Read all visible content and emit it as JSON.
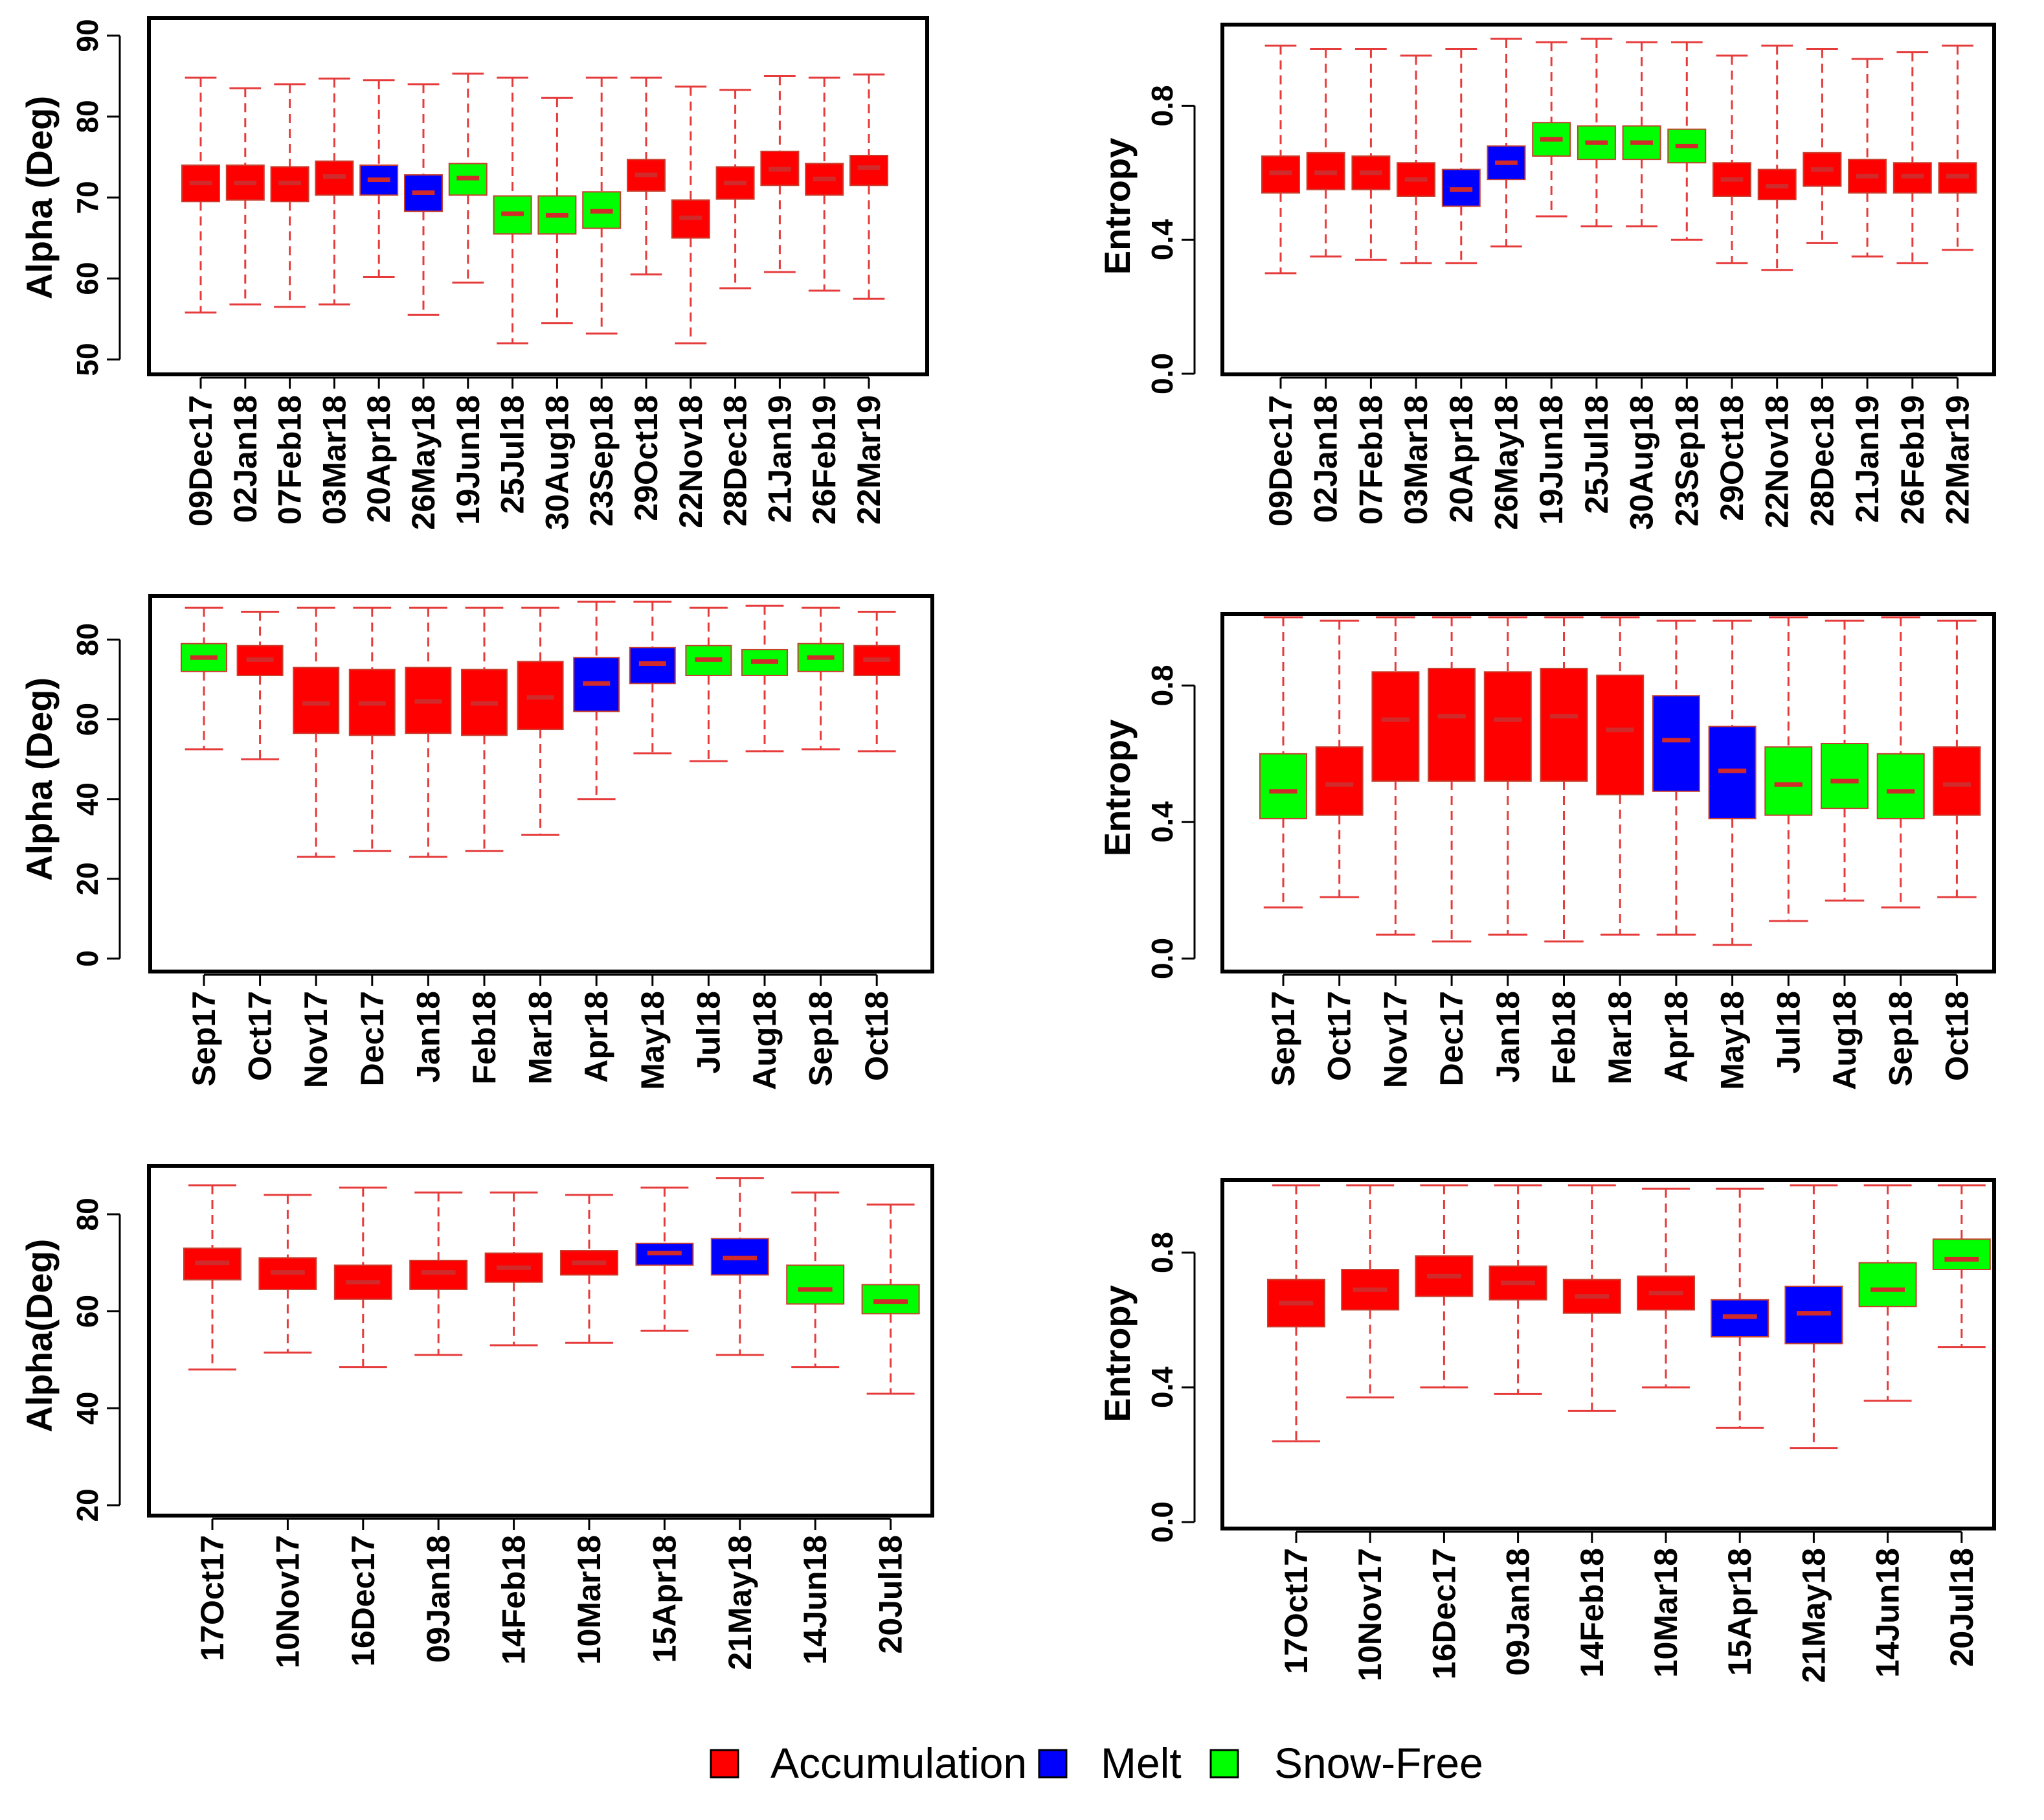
{
  "colors": {
    "Accumulation": "#ff0000",
    "Melt": "#0000ff",
    "Snow-Free": "#00ff00"
  },
  "legend": {
    "items": [
      {
        "label": "Accumulation",
        "color": "#ff0000"
      },
      {
        "label": "Melt",
        "color": "#0000ff"
      },
      {
        "label": "Snow-Free",
        "color": "#00ff00"
      }
    ]
  },
  "chart_data": [
    {
      "type": "boxplot",
      "ylabel": "Alpha (Deg)",
      "ylim": [
        50,
        90
      ],
      "yticks": [
        50,
        60,
        70,
        80,
        90
      ],
      "categories": [
        "09Dec17",
        "02Jan18",
        "07Feb18",
        "03Mar18",
        "20Apr18",
        "26May18",
        "19Jun18",
        "25Jul18",
        "30Aug18",
        "23Sep18",
        "29Oct18",
        "22Nov18",
        "28Dec18",
        "21Jan19",
        "26Feb19",
        "22Mar19"
      ],
      "boxes": [
        {
          "min": 55.8,
          "q1": 69.5,
          "median": 71.8,
          "q3": 74.0,
          "max": 84.8,
          "class": "Accumulation"
        },
        {
          "min": 56.8,
          "q1": 69.7,
          "median": 71.8,
          "q3": 74.0,
          "max": 83.5,
          "class": "Accumulation"
        },
        {
          "min": 56.5,
          "q1": 69.5,
          "median": 71.8,
          "q3": 73.8,
          "max": 84.0,
          "class": "Accumulation"
        },
        {
          "min": 56.8,
          "q1": 70.3,
          "median": 72.6,
          "q3": 74.5,
          "max": 84.7,
          "class": "Accumulation"
        },
        {
          "min": 60.2,
          "q1": 70.3,
          "median": 72.2,
          "q3": 74.0,
          "max": 84.5,
          "class": "Melt"
        },
        {
          "min": 55.5,
          "q1": 68.3,
          "median": 70.6,
          "q3": 72.8,
          "max": 84.0,
          "class": "Melt"
        },
        {
          "min": 59.5,
          "q1": 70.3,
          "median": 72.4,
          "q3": 74.2,
          "max": 85.3,
          "class": "Snow-Free"
        },
        {
          "min": 52.0,
          "q1": 65.5,
          "median": 68.0,
          "q3": 70.2,
          "max": 84.8,
          "class": "Snow-Free"
        },
        {
          "min": 54.5,
          "q1": 65.5,
          "median": 67.8,
          "q3": 70.2,
          "max": 82.3,
          "class": "Snow-Free"
        },
        {
          "min": 53.2,
          "q1": 66.2,
          "median": 68.3,
          "q3": 70.7,
          "max": 84.8,
          "class": "Snow-Free"
        },
        {
          "min": 60.5,
          "q1": 70.8,
          "median": 72.8,
          "q3": 74.7,
          "max": 84.8,
          "class": "Accumulation"
        },
        {
          "min": 52.0,
          "q1": 65.0,
          "median": 67.5,
          "q3": 69.7,
          "max": 83.7,
          "class": "Accumulation"
        },
        {
          "min": 58.8,
          "q1": 69.8,
          "median": 71.8,
          "q3": 73.8,
          "max": 83.3,
          "class": "Accumulation"
        },
        {
          "min": 60.8,
          "q1": 71.5,
          "median": 73.5,
          "q3": 75.7,
          "max": 85.0,
          "class": "Accumulation"
        },
        {
          "min": 58.5,
          "q1": 70.3,
          "median": 72.3,
          "q3": 74.2,
          "max": 84.8,
          "class": "Accumulation"
        },
        {
          "min": 57.5,
          "q1": 71.5,
          "median": 73.7,
          "q3": 75.2,
          "max": 85.2,
          "class": "Accumulation"
        }
      ]
    },
    {
      "type": "boxplot",
      "ylabel": "Entropy",
      "ylim": [
        0.0,
        1.0
      ],
      "yticks": [
        0.0,
        0.4,
        0.8
      ],
      "ytick_labels": [
        "0.0",
        "0.4",
        "0.8"
      ],
      "categories": [
        "09Dec17",
        "02Jan18",
        "07Feb18",
        "03Mar18",
        "20Apr18",
        "26May18",
        "19Jun18",
        "25Jul18",
        "30Aug18",
        "23Sep18",
        "29Oct18",
        "22Nov18",
        "28Dec18",
        "21Jan19",
        "26Feb19",
        "22Mar19"
      ],
      "boxes": [
        {
          "min": 0.3,
          "q1": 0.54,
          "median": 0.6,
          "q3": 0.65,
          "max": 0.98,
          "class": "Accumulation"
        },
        {
          "min": 0.35,
          "q1": 0.55,
          "median": 0.6,
          "q3": 0.66,
          "max": 0.97,
          "class": "Accumulation"
        },
        {
          "min": 0.34,
          "q1": 0.55,
          "median": 0.6,
          "q3": 0.65,
          "max": 0.97,
          "class": "Accumulation"
        },
        {
          "min": 0.33,
          "q1": 0.53,
          "median": 0.58,
          "q3": 0.63,
          "max": 0.95,
          "class": "Accumulation"
        },
        {
          "min": 0.33,
          "q1": 0.5,
          "median": 0.55,
          "q3": 0.61,
          "max": 0.97,
          "class": "Melt"
        },
        {
          "min": 0.38,
          "q1": 0.58,
          "median": 0.63,
          "q3": 0.68,
          "max": 1.0,
          "class": "Melt"
        },
        {
          "min": 0.47,
          "q1": 0.65,
          "median": 0.7,
          "q3": 0.75,
          "max": 0.99,
          "class": "Snow-Free"
        },
        {
          "min": 0.44,
          "q1": 0.64,
          "median": 0.69,
          "q3": 0.74,
          "max": 1.0,
          "class": "Snow-Free"
        },
        {
          "min": 0.44,
          "q1": 0.64,
          "median": 0.69,
          "q3": 0.74,
          "max": 0.99,
          "class": "Snow-Free"
        },
        {
          "min": 0.4,
          "q1": 0.63,
          "median": 0.68,
          "q3": 0.73,
          "max": 0.99,
          "class": "Snow-Free"
        },
        {
          "min": 0.33,
          "q1": 0.53,
          "median": 0.58,
          "q3": 0.63,
          "max": 0.95,
          "class": "Accumulation"
        },
        {
          "min": 0.31,
          "q1": 0.52,
          "median": 0.56,
          "q3": 0.61,
          "max": 0.98,
          "class": "Accumulation"
        },
        {
          "min": 0.39,
          "q1": 0.56,
          "median": 0.61,
          "q3": 0.66,
          "max": 0.97,
          "class": "Accumulation"
        },
        {
          "min": 0.35,
          "q1": 0.54,
          "median": 0.59,
          "q3": 0.64,
          "max": 0.94,
          "class": "Accumulation"
        },
        {
          "min": 0.33,
          "q1": 0.54,
          "median": 0.59,
          "q3": 0.63,
          "max": 0.96,
          "class": "Accumulation"
        },
        {
          "min": 0.37,
          "q1": 0.54,
          "median": 0.59,
          "q3": 0.63,
          "max": 0.98,
          "class": "Accumulation"
        }
      ]
    },
    {
      "type": "boxplot",
      "ylabel": "Alpha (Deg)",
      "ylim": [
        0,
        90
      ],
      "yticks": [
        0,
        20,
        40,
        60,
        80
      ],
      "categories": [
        "Sep17",
        "Oct17",
        "Nov17",
        "Dec17",
        "Jan18",
        "Feb18",
        "Mar18",
        "Apr18",
        "May18",
        "Jul18",
        "Aug18",
        "Sep18",
        "Oct18"
      ],
      "boxes": [
        {
          "min": 52.5,
          "q1": 72.0,
          "median": 75.5,
          "q3": 79.0,
          "max": 88.0,
          "class": "Snow-Free"
        },
        {
          "min": 50.0,
          "q1": 71.0,
          "median": 75.0,
          "q3": 78.5,
          "max": 87.0,
          "class": "Accumulation"
        },
        {
          "min": 25.5,
          "q1": 56.5,
          "median": 64.0,
          "q3": 73.0,
          "max": 88.0,
          "class": "Accumulation"
        },
        {
          "min": 27.0,
          "q1": 56.0,
          "median": 64.0,
          "q3": 72.5,
          "max": 88.0,
          "class": "Accumulation"
        },
        {
          "min": 25.5,
          "q1": 56.5,
          "median": 64.5,
          "q3": 73.0,
          "max": 88.0,
          "class": "Accumulation"
        },
        {
          "min": 27.0,
          "q1": 56.0,
          "median": 64.0,
          "q3": 72.5,
          "max": 88.0,
          "class": "Accumulation"
        },
        {
          "min": 31.0,
          "q1": 57.5,
          "median": 65.5,
          "q3": 74.5,
          "max": 88.0,
          "class": "Accumulation"
        },
        {
          "min": 40.0,
          "q1": 62.0,
          "median": 69.0,
          "q3": 75.5,
          "max": 89.5,
          "class": "Melt"
        },
        {
          "min": 51.5,
          "q1": 69.0,
          "median": 74.0,
          "q3": 78.0,
          "max": 89.5,
          "class": "Melt"
        },
        {
          "min": 49.5,
          "q1": 71.0,
          "median": 75.0,
          "q3": 78.5,
          "max": 88.0,
          "class": "Snow-Free"
        },
        {
          "min": 52.0,
          "q1": 71.0,
          "median": 74.5,
          "q3": 77.5,
          "max": 88.5,
          "class": "Snow-Free"
        },
        {
          "min": 52.5,
          "q1": 72.0,
          "median": 75.5,
          "q3": 79.0,
          "max": 88.0,
          "class": "Snow-Free"
        },
        {
          "min": 52.0,
          "q1": 71.0,
          "median": 75.0,
          "q3": 78.5,
          "max": 87.0,
          "class": "Accumulation"
        }
      ]
    },
    {
      "type": "boxplot",
      "ylabel": "Entropy",
      "ylim": [
        0.0,
        1.0
      ],
      "yticks": [
        0.0,
        0.4,
        0.8
      ],
      "ytick_labels": [
        "0.0",
        "0.4",
        "0.8"
      ],
      "categories": [
        "Sep17",
        "Oct17",
        "Nov17",
        "Dec17",
        "Jan18",
        "Feb18",
        "Mar18",
        "Apr18",
        "May18",
        "Jul18",
        "Aug18",
        "Sep18",
        "Oct18"
      ],
      "boxes": [
        {
          "min": 0.15,
          "q1": 0.41,
          "median": 0.49,
          "q3": 0.6,
          "max": 1.0,
          "class": "Snow-Free"
        },
        {
          "min": 0.18,
          "q1": 0.42,
          "median": 0.51,
          "q3": 0.62,
          "max": 0.99,
          "class": "Accumulation"
        },
        {
          "min": 0.07,
          "q1": 0.52,
          "median": 0.7,
          "q3": 0.84,
          "max": 1.0,
          "class": "Accumulation"
        },
        {
          "min": 0.05,
          "q1": 0.52,
          "median": 0.71,
          "q3": 0.85,
          "max": 1.0,
          "class": "Accumulation"
        },
        {
          "min": 0.07,
          "q1": 0.52,
          "median": 0.7,
          "q3": 0.84,
          "max": 1.0,
          "class": "Accumulation"
        },
        {
          "min": 0.05,
          "q1": 0.52,
          "median": 0.71,
          "q3": 0.85,
          "max": 1.0,
          "class": "Accumulation"
        },
        {
          "min": 0.07,
          "q1": 0.48,
          "median": 0.67,
          "q3": 0.83,
          "max": 1.0,
          "class": "Accumulation"
        },
        {
          "min": 0.07,
          "q1": 0.49,
          "median": 0.64,
          "q3": 0.77,
          "max": 0.99,
          "class": "Melt"
        },
        {
          "min": 0.04,
          "q1": 0.41,
          "median": 0.55,
          "q3": 0.68,
          "max": 0.99,
          "class": "Melt"
        },
        {
          "min": 0.11,
          "q1": 0.42,
          "median": 0.51,
          "q3": 0.62,
          "max": 1.0,
          "class": "Snow-Free"
        },
        {
          "min": 0.17,
          "q1": 0.44,
          "median": 0.52,
          "q3": 0.63,
          "max": 0.99,
          "class": "Snow-Free"
        },
        {
          "min": 0.15,
          "q1": 0.41,
          "median": 0.49,
          "q3": 0.6,
          "max": 1.0,
          "class": "Snow-Free"
        },
        {
          "min": 0.18,
          "q1": 0.42,
          "median": 0.51,
          "q3": 0.62,
          "max": 0.99,
          "class": "Accumulation"
        }
      ]
    },
    {
      "type": "boxplot",
      "ylabel": "Alpha(Deg)",
      "ylim": [
        20,
        90
      ],
      "yticks": [
        20,
        40,
        60,
        80
      ],
      "categories": [
        "17Oct17",
        "10Nov17",
        "16Dec17",
        "09Jan18",
        "14Feb18",
        "10Mar18",
        "15Apr18",
        "21May18",
        "14Jun18",
        "20Jul18"
      ],
      "boxes": [
        {
          "min": 48.0,
          "q1": 66.5,
          "median": 70.0,
          "q3": 73.0,
          "max": 86.0,
          "class": "Accumulation"
        },
        {
          "min": 51.5,
          "q1": 64.5,
          "median": 68.0,
          "q3": 71.0,
          "max": 84.0,
          "class": "Accumulation"
        },
        {
          "min": 48.5,
          "q1": 62.5,
          "median": 66.0,
          "q3": 69.5,
          "max": 85.5,
          "class": "Accumulation"
        },
        {
          "min": 51.0,
          "q1": 64.5,
          "median": 68.0,
          "q3": 70.5,
          "max": 84.5,
          "class": "Accumulation"
        },
        {
          "min": 53.0,
          "q1": 66.0,
          "median": 69.0,
          "q3": 72.0,
          "max": 84.5,
          "class": "Accumulation"
        },
        {
          "min": 53.5,
          "q1": 67.5,
          "median": 70.0,
          "q3": 72.5,
          "max": 84.0,
          "class": "Accumulation"
        },
        {
          "min": 56.0,
          "q1": 69.5,
          "median": 72.0,
          "q3": 74.0,
          "max": 85.5,
          "class": "Melt"
        },
        {
          "min": 51.0,
          "q1": 67.5,
          "median": 71.0,
          "q3": 75.0,
          "max": 87.5,
          "class": "Melt"
        },
        {
          "min": 48.5,
          "q1": 61.5,
          "median": 64.5,
          "q3": 69.5,
          "max": 84.5,
          "class": "Snow-Free"
        },
        {
          "min": 43.0,
          "q1": 59.5,
          "median": 62.0,
          "q3": 65.5,
          "max": 82.0,
          "class": "Snow-Free"
        }
      ]
    },
    {
      "type": "boxplot",
      "ylabel": "Entropy",
      "ylim": [
        0.0,
        1.0
      ],
      "yticks": [
        0.0,
        0.4,
        0.8
      ],
      "ytick_labels": [
        "0.0",
        "0.4",
        "0.8"
      ],
      "categories": [
        "17Oct17",
        "10Nov17",
        "16Dec17",
        "09Jan18",
        "14Feb18",
        "10Mar18",
        "15Apr18",
        "21May18",
        "14Jun18",
        "20Jul18"
      ],
      "boxes": [
        {
          "min": 0.24,
          "q1": 0.58,
          "median": 0.65,
          "q3": 0.72,
          "max": 1.0,
          "class": "Accumulation"
        },
        {
          "min": 0.37,
          "q1": 0.63,
          "median": 0.69,
          "q3": 0.75,
          "max": 1.0,
          "class": "Accumulation"
        },
        {
          "min": 0.4,
          "q1": 0.67,
          "median": 0.73,
          "q3": 0.79,
          "max": 1.0,
          "class": "Accumulation"
        },
        {
          "min": 0.38,
          "q1": 0.66,
          "median": 0.71,
          "q3": 0.76,
          "max": 1.0,
          "class": "Accumulation"
        },
        {
          "min": 0.33,
          "q1": 0.62,
          "median": 0.67,
          "q3": 0.72,
          "max": 1.0,
          "class": "Accumulation"
        },
        {
          "min": 0.4,
          "q1": 0.63,
          "median": 0.68,
          "q3": 0.73,
          "max": 0.99,
          "class": "Accumulation"
        },
        {
          "min": 0.28,
          "q1": 0.55,
          "median": 0.61,
          "q3": 0.66,
          "max": 0.99,
          "class": "Melt"
        },
        {
          "min": 0.22,
          "q1": 0.53,
          "median": 0.62,
          "q3": 0.7,
          "max": 1.0,
          "class": "Melt"
        },
        {
          "min": 0.36,
          "q1": 0.64,
          "median": 0.69,
          "q3": 0.77,
          "max": 1.0,
          "class": "Snow-Free"
        },
        {
          "min": 0.52,
          "q1": 0.75,
          "median": 0.78,
          "q3": 0.84,
          "max": 1.0,
          "class": "Snow-Free"
        }
      ]
    }
  ]
}
